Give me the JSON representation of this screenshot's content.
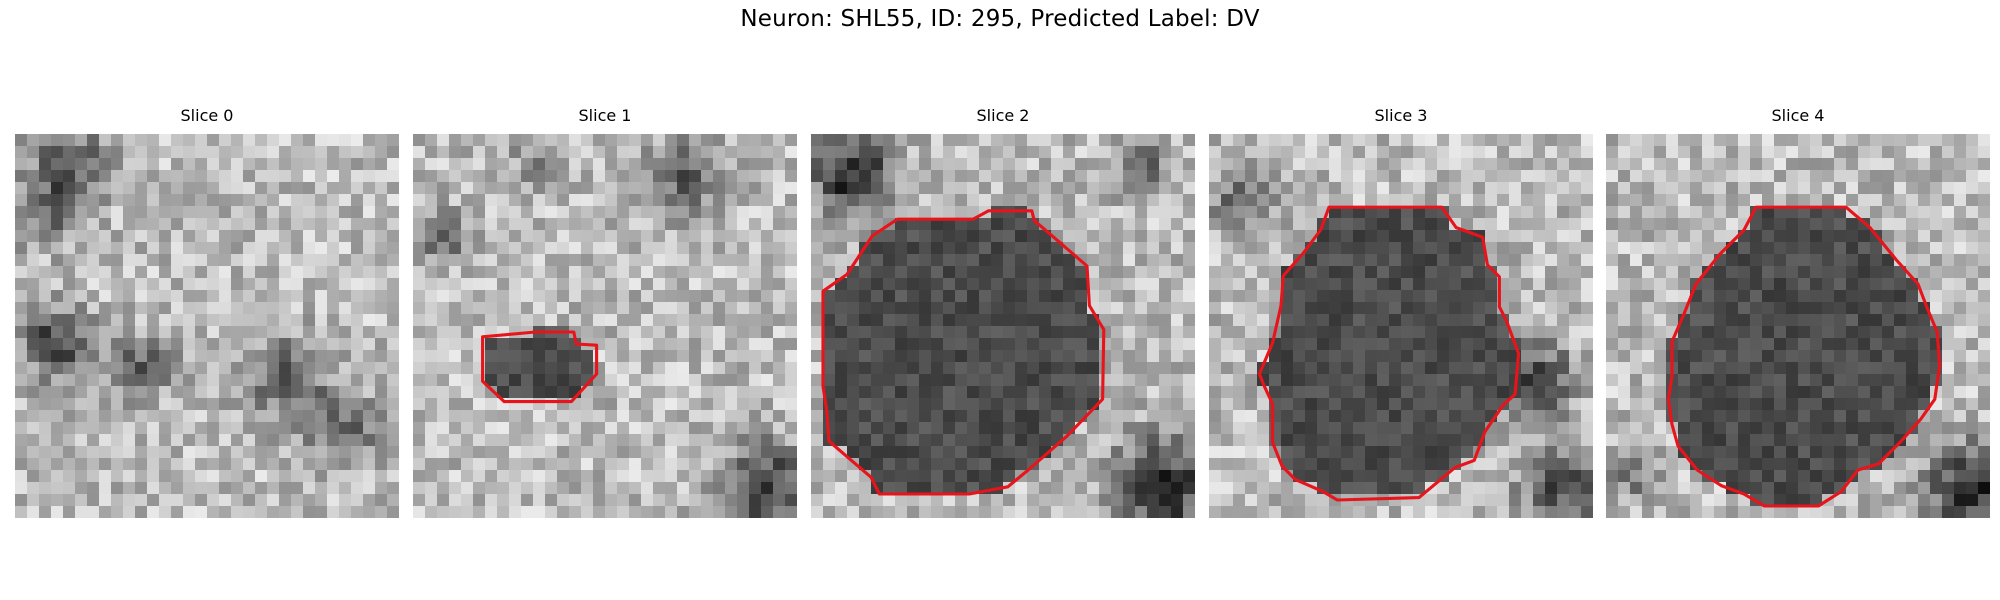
{
  "figure": {
    "title": "Neuron: SHL55, ID: 295, Predicted Label: DV"
  },
  "colors": {
    "contour": "#e8141b",
    "background": "#ffffff"
  },
  "panels": [
    {
      "title": "Slice 0",
      "image": "grayscale-microscopy-patch",
      "contour": []
    },
    {
      "title": "Slice 1",
      "image": "grayscale-microscopy-patch",
      "contour": [
        [
          10.2,
          16.5
        ],
        [
          13.4,
          16.5
        ],
        [
          13.6,
          17.5
        ],
        [
          15.3,
          17.6
        ],
        [
          15.3,
          20.0
        ],
        [
          13.2,
          22.3
        ],
        [
          7.6,
          22.3
        ],
        [
          5.8,
          20.6
        ],
        [
          5.8,
          16.9
        ]
      ]
    },
    {
      "title": "Slice 2",
      "image": "grayscale-microscopy-patch",
      "contour": [
        [
          14.8,
          6.4
        ],
        [
          18.4,
          6.4
        ],
        [
          18.6,
          7.2
        ],
        [
          23.0,
          11.0
        ],
        [
          23.2,
          14.3
        ],
        [
          24.4,
          16.3
        ],
        [
          24.3,
          22.1
        ],
        [
          21.3,
          25.2
        ],
        [
          18.1,
          28.0
        ],
        [
          16.4,
          29.4
        ],
        [
          13.2,
          30.0
        ],
        [
          5.7,
          30.0
        ],
        [
          5.0,
          28.6
        ],
        [
          1.5,
          25.6
        ],
        [
          1.3,
          23.0
        ],
        [
          1.0,
          21.0
        ],
        [
          1.0,
          13.1
        ],
        [
          3.0,
          11.7
        ],
        [
          5.1,
          8.5
        ],
        [
          7.2,
          7.1
        ],
        [
          13.5,
          7.1
        ],
        [
          14.8,
          6.4
        ]
      ]
    },
    {
      "title": "Slice 3",
      "image": "grayscale-microscopy-patch",
      "contour": [
        [
          10.0,
          6.1
        ],
        [
          19.4,
          6.1
        ],
        [
          20.6,
          7.8
        ],
        [
          22.8,
          8.6
        ],
        [
          23.2,
          10.9
        ],
        [
          24.2,
          11.9
        ],
        [
          24.2,
          14.4
        ],
        [
          24.8,
          15.6
        ],
        [
          25.8,
          18.3
        ],
        [
          25.5,
          21.7
        ],
        [
          24.5,
          22.6
        ],
        [
          23.0,
          24.8
        ],
        [
          22.1,
          27.2
        ],
        [
          20.5,
          27.8
        ],
        [
          17.5,
          30.3
        ],
        [
          10.7,
          30.5
        ],
        [
          9.5,
          29.8
        ],
        [
          7.2,
          28.8
        ],
        [
          6.1,
          27.7
        ],
        [
          5.3,
          25.7
        ],
        [
          5.3,
          22.5
        ],
        [
          4.6,
          21.0
        ],
        [
          4.2,
          20.0
        ],
        [
          5.3,
          17.4
        ],
        [
          6.0,
          14.3
        ],
        [
          6.2,
          11.8
        ],
        [
          7.8,
          10.0
        ],
        [
          9.3,
          8.0
        ],
        [
          10.0,
          6.1
        ]
      ]
    },
    {
      "title": "Slice 4",
      "image": "grayscale-microscopy-patch",
      "contour": [
        [
          12.5,
          6.1
        ],
        [
          20.0,
          6.1
        ],
        [
          22.0,
          7.8
        ],
        [
          24.2,
          10.5
        ],
        [
          26.0,
          12.5
        ],
        [
          26.8,
          14.6
        ],
        [
          27.6,
          16.5
        ],
        [
          27.8,
          19.3
        ],
        [
          27.4,
          22.1
        ],
        [
          26.2,
          23.8
        ],
        [
          24.5,
          25.7
        ],
        [
          22.7,
          27.5
        ],
        [
          21.0,
          28.0
        ],
        [
          19.6,
          29.8
        ],
        [
          17.7,
          31.0
        ],
        [
          13.2,
          31.0
        ],
        [
          11.5,
          30.0
        ],
        [
          9.6,
          29.3
        ],
        [
          7.6,
          28.0
        ],
        [
          6.0,
          26.0
        ],
        [
          5.5,
          24.2
        ],
        [
          5.2,
          22.1
        ],
        [
          5.5,
          20.2
        ],
        [
          5.5,
          17.3
        ],
        [
          6.5,
          15.0
        ],
        [
          7.5,
          12.5
        ],
        [
          9.5,
          10.0
        ],
        [
          11.5,
          8.0
        ],
        [
          12.5,
          6.1
        ]
      ]
    }
  ]
}
